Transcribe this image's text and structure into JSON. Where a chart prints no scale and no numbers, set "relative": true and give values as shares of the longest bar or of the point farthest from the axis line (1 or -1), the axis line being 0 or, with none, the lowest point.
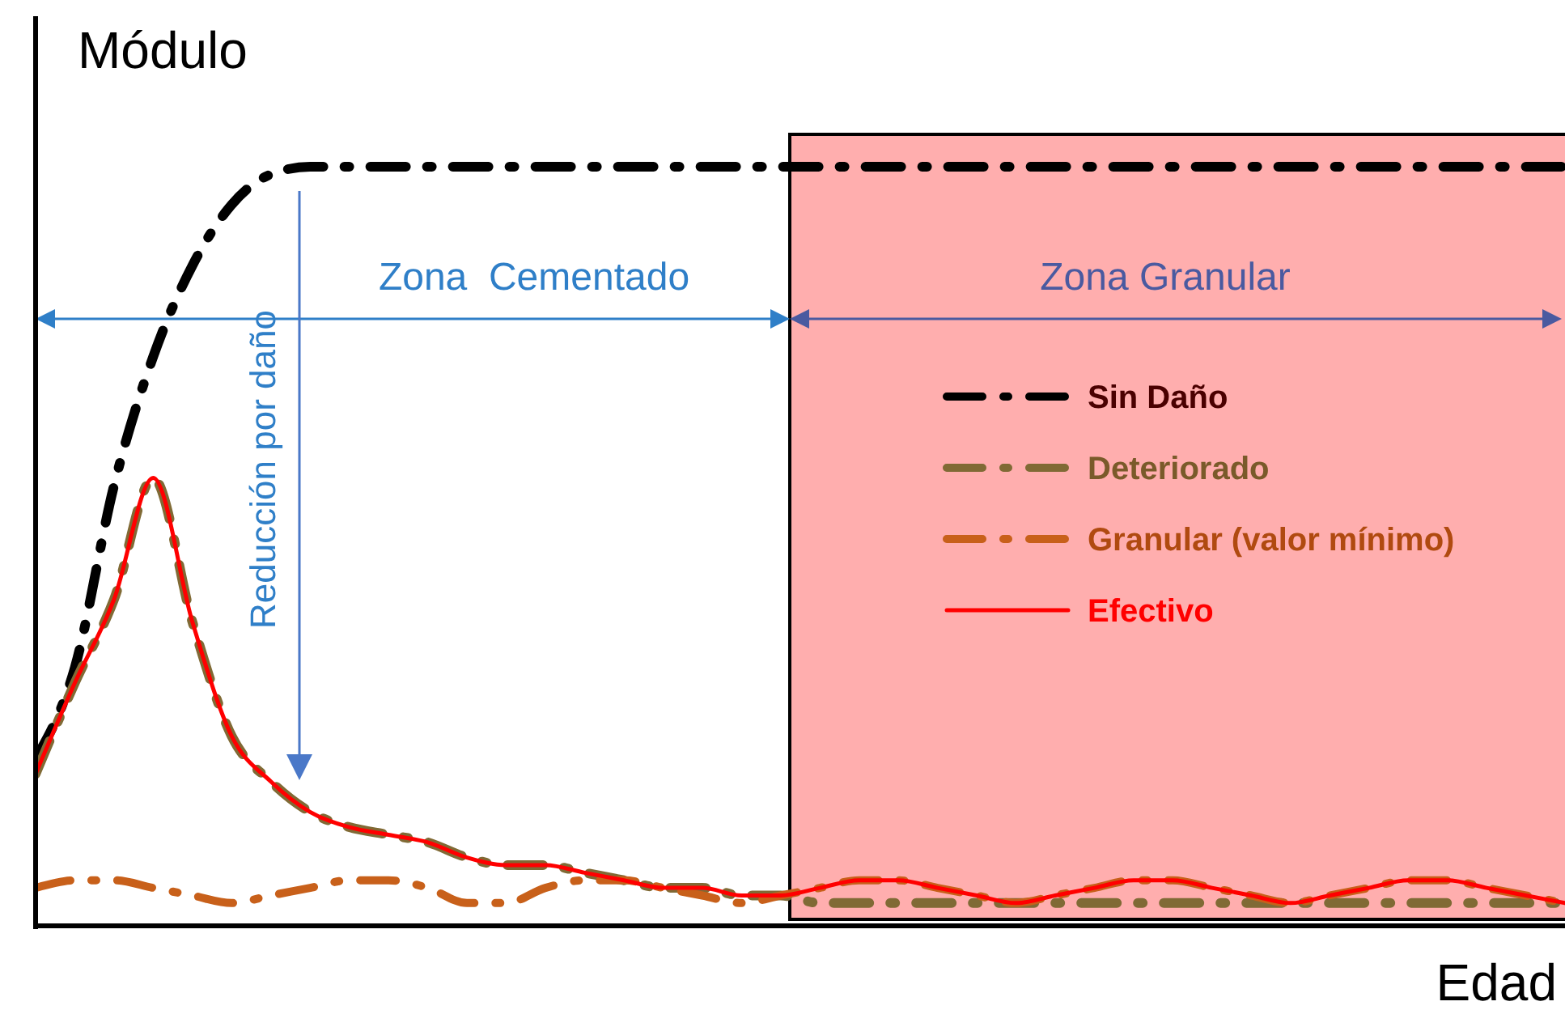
{
  "chart_data": {
    "type": "line",
    "relative": true,
    "xlabel": "Edad",
    "ylabel": "Módulo",
    "categories": [
      null,
      null,
      null,
      null,
      null,
      null,
      null,
      null,
      null,
      null,
      null,
      null,
      null,
      null,
      null,
      null,
      null,
      null,
      null,
      null,
      null,
      null,
      null,
      null,
      null,
      null,
      null,
      null,
      null,
      null,
      null,
      null,
      null,
      null,
      null,
      null,
      null,
      null,
      null,
      null
    ],
    "series": [
      {
        "name": "Sin Daño",
        "color": "#000000",
        "line_style": "dashed",
        "values": [
          0.22,
          0.34,
          0.58,
          0.75,
          0.87,
          0.95,
          0.99,
          1,
          1,
          1,
          1,
          1,
          1,
          1,
          1,
          1,
          1,
          1,
          1,
          1,
          1,
          1,
          1,
          1,
          1,
          1,
          1,
          1,
          1,
          1,
          1,
          1,
          1,
          1,
          1,
          1,
          1,
          1,
          1,
          1
        ]
      },
      {
        "name": "Deteriorado",
        "color": "#806a35",
        "line_style": "dashed",
        "values": [
          0.2,
          0.32,
          0.43,
          0.59,
          0.4,
          0.25,
          0.19,
          0.15,
          0.13,
          0.12,
          0.11,
          0.09,
          0.08,
          0.08,
          0.07,
          0.06,
          0.05,
          0.05,
          0.04,
          0.04,
          0.03,
          0.03,
          0.03,
          0.03,
          0.03,
          0.03,
          0.03,
          0.03,
          0.03,
          0.03,
          0.03,
          0.03,
          0.03,
          0.03,
          0.03,
          0.03,
          0.03,
          0.03,
          0.03,
          0.03
        ]
      },
      {
        "name": "Granular (valor mínimo)",
        "color": "#c8601a",
        "line_style": "dashed",
        "values": [
          0.05,
          0.06,
          0.06,
          0.05,
          0.04,
          0.03,
          0.04,
          0.05,
          0.06,
          0.06,
          0.05,
          0.03,
          0.03,
          0.05,
          0.06,
          0.06,
          0.05,
          0.04,
          0.03,
          0.04,
          0.05,
          0.06,
          0.06,
          0.05,
          0.04,
          0.03,
          0.04,
          0.05,
          0.06,
          0.06,
          0.05,
          0.04,
          0.03,
          0.04,
          0.05,
          0.06,
          0.06,
          0.05,
          0.04,
          0.03
        ]
      },
      {
        "name": "Efectivo",
        "color": "#ff0000",
        "line_style": "solid",
        "values": [
          0.2,
          0.32,
          0.43,
          0.59,
          0.4,
          0.25,
          0.19,
          0.15,
          0.13,
          0.12,
          0.11,
          0.09,
          0.08,
          0.08,
          0.07,
          0.06,
          0.05,
          0.05,
          0.04,
          0.04,
          0.05,
          0.06,
          0.06,
          0.05,
          0.04,
          0.03,
          0.04,
          0.05,
          0.06,
          0.06,
          0.05,
          0.04,
          0.03,
          0.04,
          0.05,
          0.06,
          0.06,
          0.05,
          0.04,
          0.03
        ]
      }
    ],
    "annotations": [
      "Zona  Cementado",
      "Zona Granular",
      "Reducción por daño"
    ],
    "legend": "right"
  }
}
